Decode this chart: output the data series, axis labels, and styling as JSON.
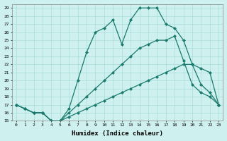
{
  "xlabel": "Humidex (Indice chaleur)",
  "xlim": [
    -0.5,
    23.5
  ],
  "ylim": [
    15,
    29.5
  ],
  "xticks": [
    0,
    1,
    2,
    3,
    4,
    5,
    6,
    7,
    8,
    9,
    10,
    11,
    12,
    13,
    14,
    15,
    16,
    17,
    18,
    19,
    20,
    21,
    22,
    23
  ],
  "yticks": [
    15,
    16,
    17,
    18,
    19,
    20,
    21,
    22,
    23,
    24,
    25,
    26,
    27,
    28,
    29
  ],
  "bg_color": "#cef0ee",
  "grid_color": "#a8dcd9",
  "line_color": "#1a7a6e",
  "curves": [
    {
      "x": [
        0,
        1,
        2,
        3,
        4,
        5,
        6,
        7,
        8,
        9,
        10,
        11,
        12,
        13,
        14,
        15,
        16,
        17,
        18,
        19,
        20,
        21,
        22,
        23
      ],
      "y": [
        17,
        16.5,
        16,
        16,
        15,
        15,
        15.5,
        16,
        16.5,
        17,
        17.5,
        18,
        18.5,
        19,
        19.5,
        20,
        20.5,
        21,
        21.5,
        22,
        22,
        21.5,
        21,
        17
      ]
    },
    {
      "x": [
        0,
        1,
        2,
        3,
        4,
        5,
        6,
        7,
        8,
        9,
        10,
        11,
        12,
        13,
        14,
        15,
        16,
        17,
        18,
        19,
        20,
        21,
        22,
        23
      ],
      "y": [
        17,
        16.5,
        16,
        16,
        15,
        15,
        16,
        17,
        18,
        19,
        20,
        21,
        22,
        23,
        24,
        24.5,
        25,
        25,
        25.5,
        22.5,
        19.5,
        18.5,
        18,
        17
      ]
    },
    {
      "x": [
        0,
        1,
        2,
        3,
        4,
        5,
        6,
        7,
        8,
        9,
        10,
        11,
        12,
        13,
        14,
        15,
        16,
        17,
        18,
        19,
        20,
        21,
        22,
        23
      ],
      "y": [
        17,
        16.5,
        16,
        16,
        15,
        15,
        16.5,
        20,
        23.5,
        26,
        26.5,
        27.5,
        24.5,
        27.5,
        29,
        29,
        29,
        27,
        26.5,
        25,
        22,
        19.5,
        18.5,
        17
      ]
    }
  ]
}
